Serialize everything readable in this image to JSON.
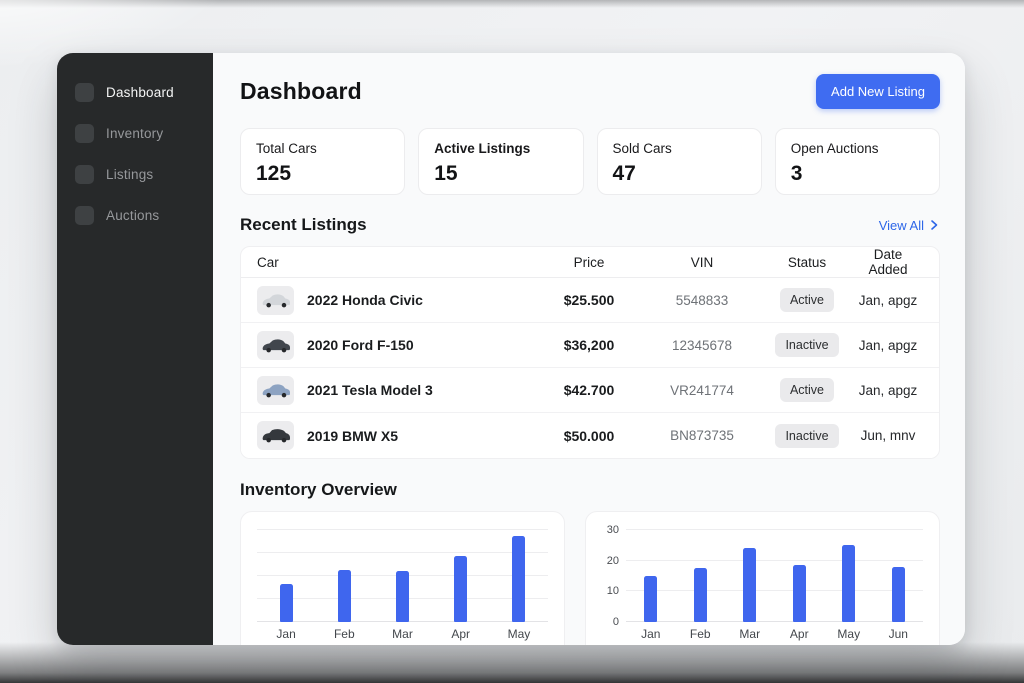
{
  "sidebar": {
    "items": [
      {
        "label": "Dashboard",
        "active": true
      },
      {
        "label": "Inventory",
        "active": false
      },
      {
        "label": "Listings",
        "active": false
      },
      {
        "label": "Auctions",
        "active": false
      }
    ]
  },
  "header": {
    "title": "Dashboard",
    "add_button": "Add New Listing"
  },
  "stats": [
    {
      "label": "Total Cars",
      "value": "125"
    },
    {
      "label": "Active Listings",
      "value": "15"
    },
    {
      "label": "Sold Cars",
      "value": "47"
    },
    {
      "label": "Open Auctions",
      "value": "3"
    }
  ],
  "recent": {
    "title": "Recent Listings",
    "view_all": "View All",
    "columns": [
      "Car",
      "Price",
      "VIN",
      "Status",
      "Date Added"
    ],
    "rows": [
      {
        "car": "2022 Honda Civic",
        "price": "$25.500",
        "vin": "5548833",
        "status": "Active",
        "date": "Jan, apgz",
        "car_color": "#d3d6da"
      },
      {
        "car": "2020 Ford F-150",
        "price": "$36,200",
        "vin": "12345678",
        "status": "Inactive",
        "date": "Jan, apgz",
        "car_color": "#41464d"
      },
      {
        "car": "2021 Tesla Model 3",
        "price": "$42.700",
        "vin": "VR241774",
        "status": "Active",
        "date": "Jan, apgz",
        "car_color": "#8da3c2"
      },
      {
        "car": "2019 BMW X5",
        "price": "$50.000",
        "vin": "BN873735",
        "status": "Inactive",
        "date": "Jun, mnv",
        "car_color": "#34383d"
      }
    ]
  },
  "inventory": {
    "title": "Inventory Overview"
  },
  "chart_data": [
    {
      "type": "bar",
      "categories": [
        "Jan",
        "Feb",
        "Mar",
        "Apr",
        "May"
      ],
      "values": [
        12.5,
        17,
        16.5,
        21.5,
        28
      ],
      "title": "",
      "xlabel": "",
      "ylabel": "",
      "ylim": [
        0,
        30
      ],
      "yticks": [
        0,
        7.5,
        15,
        22.5,
        30
      ],
      "show_ytick_labels": false,
      "grid": true,
      "legend": false
    },
    {
      "type": "bar",
      "categories": [
        "Jan",
        "Feb",
        "Mar",
        "Apr",
        "May",
        "Jun"
      ],
      "values": [
        15,
        17.5,
        24,
        18.5,
        25,
        18
      ],
      "title": "",
      "xlabel": "",
      "ylabel": "",
      "ylim": [
        0,
        30
      ],
      "yticks": [
        0,
        10,
        20,
        30
      ],
      "show_ytick_labels": true,
      "grid": true,
      "legend": false
    }
  ],
  "colors": {
    "accent_blue": "#3f6cf1",
    "bar_blue": "#3f66ee",
    "sidebar_bg": "#27292a",
    "badge_bg": "#eaeaec"
  }
}
